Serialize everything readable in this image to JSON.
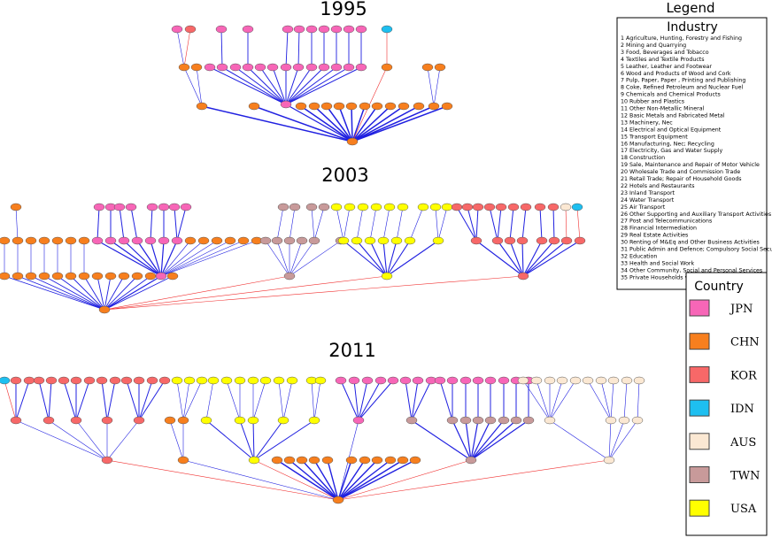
{
  "sections": [
    {
      "title": "1995"
    },
    {
      "title": "2003"
    },
    {
      "title": "2011"
    }
  ],
  "legend": {
    "title": "Legend",
    "industry_title": "Industry",
    "industries": [
      "1 Agriculture, Hunting, Forestry and Fishing",
      "2 Mining and Quarrying",
      "3 Food, Beverages and Tobacco",
      "4 Textiles and Textile Products",
      "5 Leather, Leather and Footwear",
      "6 Wood and Products of Wood and Cork",
      "7 Pulp, Paper, Paper , Printing and Publishing",
      "8 Coke, Refined Petroleum and Nuclear Fuel",
      "9 Chemicals and Chemical Products",
      "10 Rubber and Plastics",
      "11 Other Non-Metallic Mineral",
      "12 Basic Metals and Fabricated Metal",
      "13 Machinery, Nec",
      "14 Electrical and Optical Equipment",
      "15 Transport Equipment",
      "16 Manufacturing, Nec; Recycling",
      "17 Electricity, Gas and Water Supply",
      "18 Construction",
      "19 Sale, Maintenance and Repair of Motor Vehicle",
      "20 Wholesale Trade and Commission Trade",
      "21 Retail Trade; Repair of Household Goods",
      "22 Hotels and Restaurants",
      "23 Inland Transport",
      "24 Water Transport",
      "25 Air Transport",
      "26 Other Supporting and Auxiliary Transport Activities",
      "27 Post and Telecommunications",
      "28 Financial Intermediation",
      "29 Real Estate Activities",
      "30 Renting of M&Eq and Other Business Activities",
      "31 Public Admin and Defence; Compulsory Social Security",
      "32 Education",
      "33 Health and Social Work",
      "34 Other Community, Social and Personal Services",
      "35 Private Households with Employed Persons"
    ],
    "country_title": "Country",
    "countries": [
      {
        "name": "JPN",
        "color": "#f766b7"
      },
      {
        "name": "CHN",
        "color": "#f77f1e"
      },
      {
        "name": "KOR",
        "color": "#f76868"
      },
      {
        "name": "IDN",
        "color": "#1ebff0"
      },
      {
        "name": "AUS",
        "color": "#fbe8d3"
      },
      {
        "name": "TWN",
        "color": "#c89a9a"
      },
      {
        "name": "USA",
        "color": "#ffff00"
      }
    ]
  }
}
